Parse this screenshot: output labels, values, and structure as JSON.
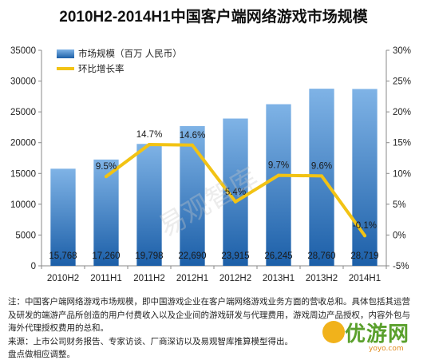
{
  "title": "2010H2-2014H1中国客户端网络游戏市场规模",
  "chart_data": {
    "type": "bar",
    "categories": [
      "2010H2",
      "2011H1",
      "2011H2",
      "2012H1",
      "2012H2",
      "2013H1",
      "2013H2",
      "2014H1"
    ],
    "series": [
      {
        "name": "市场规模（百万 人民币）",
        "type": "bar",
        "axis": "left",
        "values": [
          15768,
          17260,
          19798,
          22690,
          23915,
          26245,
          28760,
          28719
        ],
        "labels": [
          "15,768",
          "17,260",
          "19,798",
          "22,690",
          "23,915",
          "26,245",
          "28,760",
          "28,719"
        ]
      },
      {
        "name": "环比增长率",
        "type": "line",
        "axis": "right",
        "values": [
          null,
          9.5,
          14.7,
          14.6,
          5.4,
          9.7,
          9.6,
          -0.1
        ],
        "labels": [
          "",
          "9.5%",
          "14.7%",
          "14.6%",
          "5.4%",
          "9.7%",
          "9.6%",
          "-0.1%"
        ]
      }
    ],
    "y_left": {
      "min": 0,
      "max": 35000,
      "ticks": [
        0,
        5000,
        10000,
        15000,
        20000,
        25000,
        30000,
        35000
      ],
      "tick_labels": [
        "0",
        "5000",
        "10000",
        "15000",
        "20000",
        "25000",
        "30000",
        "35000"
      ]
    },
    "y_right": {
      "min": -5,
      "max": 30,
      "ticks": [
        -5,
        0,
        5,
        10,
        15,
        20,
        25,
        30
      ],
      "tick_labels": [
        "-5%",
        "0%",
        "5%",
        "10%",
        "15%",
        "20%",
        "25%",
        "30%"
      ]
    },
    "legend_position": "top-left",
    "grid": false,
    "colors": {
      "bar_top": "#7fb3e6",
      "bar_bottom": "#1c5fa8",
      "line": "#f2c314"
    }
  },
  "notes": [
    "注：中国客户端网络游戏市场规模，即中国游戏企业在客户端网络游戏业务方面的营收总和。具体包括其运营及研发的端游产品所创造的用户付费收入以及企业间的游戏研发与代理费用，游戏周边产品授权，内容外包与海外代理授权费用的总和。",
    "来源：上市公司财务报告、专家访谈、厂商深访以及易观智库推算模型得出。",
    "盘点做相应调整。"
  ],
  "watermarks": [
    "易观智库",
    "优游网",
    "yoyo.com"
  ]
}
